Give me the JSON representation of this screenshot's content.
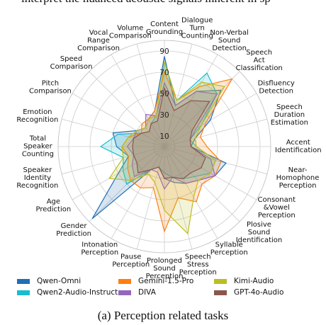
{
  "header_text": "interpret the nuanced acoustic signals inherent in sp",
  "chart_data": {
    "type": "radar",
    "caption": "(a) Perception related tasks",
    "categories": [
      "Content\nGrounding",
      "Dialogue\nTurn\nCounting",
      "Non-Verbal\nSound\nDetection",
      "Speech\nAct\nClassification",
      "Disfluency\nDetection",
      "Speech\nDuration\nEstimation",
      "Accent\nIdentification",
      "Near-Homophone\nPerception",
      "Consonant\n&Vowel\nPerception",
      "Plosive\nSound\nIdentification",
      "Syllable\nPerception",
      "Speech\nStress\nPerception",
      "Prolonged\nSound\nPerception",
      "Pause\nPerception",
      "Intonation\nPerception",
      "Gender\nPrediction",
      "Age\nPrediction",
      "Speaker\nIdentity\nRecognition",
      "Total\nSpeaker\nCounting",
      "Emotion\nRecognition",
      "Pitch\nComparison",
      "Speed\nComparison",
      "Vocal\nRange\nComparison",
      "Volume\nComparison"
    ],
    "ylim": [
      0,
      100
    ],
    "yticks": [
      10,
      30,
      50,
      70,
      90
    ],
    "grid": true,
    "legend": "bottom",
    "series": [
      {
        "name": "Qwen-Omni",
        "color": "#1f6fb4",
        "values": [
          85,
          40,
          60,
          75,
          50,
          30,
          25,
          60,
          55,
          45,
          40,
          35,
          30,
          20,
          25,
          96,
          50,
          35,
          45,
          50,
          30,
          25,
          30,
          35
        ]
      },
      {
        "name": "Qwen2-Audio-Instruct",
        "color": "#17becf",
        "values": [
          80,
          45,
          80,
          70,
          40,
          25,
          30,
          50,
          50,
          40,
          35,
          30,
          25,
          20,
          25,
          50,
          45,
          40,
          60,
          45,
          25,
          20,
          25,
          30
        ]
      },
      {
        "name": "Gemini-1.5-Pro",
        "color": "#ff7f0e",
        "values": [
          70,
          45,
          65,
          90,
          45,
          35,
          40,
          55,
          55,
          50,
          60,
          50,
          80,
          40,
          45,
          45,
          40,
          35,
          40,
          35,
          25,
          30,
          30,
          35
        ]
      },
      {
        "name": "DIVA",
        "color": "#9467bd",
        "values": [
          60,
          40,
          60,
          70,
          35,
          25,
          25,
          45,
          55,
          45,
          40,
          30,
          40,
          25,
          25,
          40,
          35,
          30,
          35,
          30,
          30,
          25,
          35,
          30
        ]
      },
      {
        "name": "Kimi-Audio",
        "color": "#bcbd22",
        "values": [
          80,
          45,
          70,
          80,
          40,
          30,
          30,
          50,
          50,
          45,
          55,
          85,
          60,
          35,
          30,
          45,
          60,
          40,
          40,
          35,
          30,
          25,
          30,
          30
        ]
      },
      {
        "name": "GPT-4o-Audio",
        "color": "#8c564b",
        "values": [
          55,
          35,
          50,
          60,
          30,
          25,
          25,
          40,
          40,
          35,
          35,
          30,
          30,
          20,
          25,
          35,
          30,
          30,
          30,
          30,
          25,
          20,
          25,
          25
        ]
      }
    ]
  }
}
